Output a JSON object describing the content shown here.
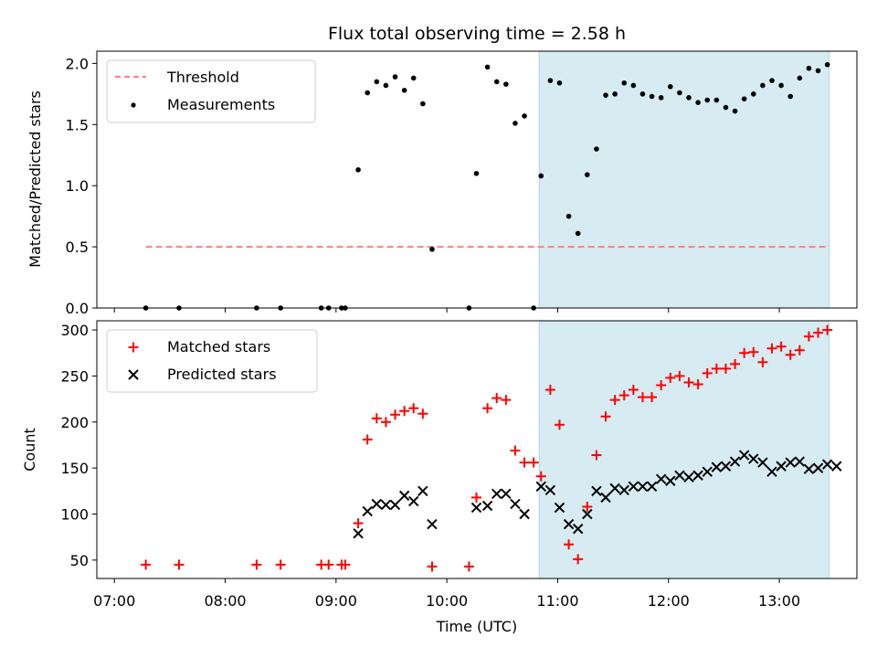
{
  "title": "Flux total observing time = 2.58 h",
  "x_axis": {
    "label": "Time (UTC)",
    "ticks": [
      "07:00",
      "08:00",
      "09:00",
      "10:00",
      "11:00",
      "12:00",
      "13:00"
    ]
  },
  "shaded_interval": {
    "start": "10:50",
    "end": "13:27",
    "color": "#add8e6"
  },
  "colors": {
    "threshold": "#ff8080",
    "measurements": "#000000",
    "matched": "#ff0000",
    "predicted": "#000000",
    "shade": "#add8e6"
  },
  "chart_data": [
    {
      "type": "scatter",
      "ylabel": "Matched/Predicted stars",
      "ylim": [
        0,
        2.1
      ],
      "yticks": [
        "0.0",
        "0.5",
        "1.0",
        "1.5",
        "2.0"
      ],
      "legend": [
        "Threshold",
        "Measurements"
      ],
      "legend_position": "upper-left",
      "threshold": {
        "name": "Threshold",
        "value": 0.5,
        "x_start": "07:17",
        "x_end": "13:27",
        "style": "dashed"
      },
      "series": [
        {
          "name": "Measurements",
          "points": [
            [
              "07:17",
              0.0
            ],
            [
              "07:35",
              0.0
            ],
            [
              "08:17",
              0.0
            ],
            [
              "08:30",
              0.0
            ],
            [
              "08:52",
              0.0
            ],
            [
              "08:56",
              0.0
            ],
            [
              "09:03",
              0.0
            ],
            [
              "09:05",
              0.0
            ],
            [
              "09:12",
              1.13
            ],
            [
              "09:17",
              1.76
            ],
            [
              "09:22",
              1.85
            ],
            [
              "09:27",
              1.82
            ],
            [
              "09:32",
              1.89
            ],
            [
              "09:37",
              1.78
            ],
            [
              "09:42",
              1.88
            ],
            [
              "09:47",
              1.67
            ],
            [
              "09:52",
              0.48
            ],
            [
              "10:12",
              0.0
            ],
            [
              "10:16",
              1.1
            ],
            [
              "10:22",
              1.97
            ],
            [
              "10:27",
              1.85
            ],
            [
              "10:32",
              1.83
            ],
            [
              "10:37",
              1.51
            ],
            [
              "10:42",
              1.57
            ],
            [
              "10:47",
              0.0
            ],
            [
              "10:51",
              1.08
            ],
            [
              "10:56",
              1.86
            ],
            [
              "11:01",
              1.84
            ],
            [
              "11:06",
              0.75
            ],
            [
              "11:11",
              0.61
            ],
            [
              "11:16",
              1.09
            ],
            [
              "11:21",
              1.3
            ],
            [
              "11:26",
              1.74
            ],
            [
              "11:31",
              1.75
            ],
            [
              "11:36",
              1.84
            ],
            [
              "11:41",
              1.82
            ],
            [
              "11:46",
              1.75
            ],
            [
              "11:51",
              1.73
            ],
            [
              "11:56",
              1.72
            ],
            [
              "12:01",
              1.81
            ],
            [
              "12:06",
              1.76
            ],
            [
              "12:11",
              1.72
            ],
            [
              "12:16",
              1.68
            ],
            [
              "12:21",
              1.7
            ],
            [
              "12:26",
              1.7
            ],
            [
              "12:31",
              1.64
            ],
            [
              "12:36",
              1.61
            ],
            [
              "12:41",
              1.71
            ],
            [
              "12:46",
              1.75
            ],
            [
              "12:51",
              1.82
            ],
            [
              "12:56",
              1.86
            ],
            [
              "13:01",
              1.82
            ],
            [
              "13:06",
              1.73
            ],
            [
              "13:11",
              1.88
            ],
            [
              "13:16",
              1.96
            ],
            [
              "13:21",
              1.94
            ],
            [
              "13:26",
              1.99
            ]
          ]
        }
      ]
    },
    {
      "type": "scatter",
      "ylabel": "Count",
      "ylim": [
        30,
        310
      ],
      "yticks": [
        "50",
        "100",
        "150",
        "200",
        "250",
        "300"
      ],
      "legend": [
        "Matched stars",
        "Predicted stars"
      ],
      "legend_position": "upper-left",
      "series": [
        {
          "name": "Matched stars",
          "marker": "+",
          "points": [
            [
              "07:17",
              45
            ],
            [
              "07:35",
              45
            ],
            [
              "08:17",
              45
            ],
            [
              "08:30",
              45
            ],
            [
              "08:52",
              45
            ],
            [
              "08:56",
              45
            ],
            [
              "09:03",
              45
            ],
            [
              "09:05",
              45
            ],
            [
              "09:12",
              90
            ],
            [
              "09:17",
              181
            ],
            [
              "09:22",
              204
            ],
            [
              "09:27",
              200
            ],
            [
              "09:32",
              208
            ],
            [
              "09:37",
              212
            ],
            [
              "09:42",
              215
            ],
            [
              "09:47",
              209
            ],
            [
              "09:52",
              43
            ],
            [
              "10:12",
              43
            ],
            [
              "10:16",
              118
            ],
            [
              "10:22",
              215
            ],
            [
              "10:27",
              226
            ],
            [
              "10:32",
              224
            ],
            [
              "10:37",
              169
            ],
            [
              "10:42",
              156
            ],
            [
              "10:47",
              156
            ],
            [
              "10:51",
              141
            ],
            [
              "10:56",
              235
            ],
            [
              "11:01",
              197
            ],
            [
              "11:06",
              67
            ],
            [
              "11:11",
              51
            ],
            [
              "11:16",
              108
            ],
            [
              "11:21",
              164
            ],
            [
              "11:26",
              206
            ],
            [
              "11:31",
              224
            ],
            [
              "11:36",
              229
            ],
            [
              "11:41",
              235
            ],
            [
              "11:46",
              227
            ],
            [
              "11:51",
              227
            ],
            [
              "11:56",
              240
            ],
            [
              "12:01",
              248
            ],
            [
              "12:06",
              250
            ],
            [
              "12:11",
              243
            ],
            [
              "12:16",
              241
            ],
            [
              "12:21",
              253
            ],
            [
              "12:26",
              258
            ],
            [
              "12:31",
              258
            ],
            [
              "12:36",
              263
            ],
            [
              "12:41",
              275
            ],
            [
              "12:46",
              276
            ],
            [
              "12:51",
              265
            ],
            [
              "12:56",
              280
            ],
            [
              "13:01",
              282
            ],
            [
              "13:06",
              273
            ],
            [
              "13:11",
              278
            ],
            [
              "13:16",
              293
            ],
            [
              "13:21",
              297
            ],
            [
              "13:26",
              300
            ]
          ]
        },
        {
          "name": "Predicted stars",
          "marker": "x",
          "points": [
            [
              "09:12",
              79
            ],
            [
              "09:17",
              103
            ],
            [
              "09:22",
              111
            ],
            [
              "09:27",
              110
            ],
            [
              "09:32",
              110
            ],
            [
              "09:37",
              120
            ],
            [
              "09:42",
              114
            ],
            [
              "09:47",
              125
            ],
            [
              "09:52",
              89
            ],
            [
              "10:16",
              107
            ],
            [
              "10:22",
              109
            ],
            [
              "10:27",
              122
            ],
            [
              "10:32",
              122
            ],
            [
              "10:37",
              111
            ],
            [
              "10:42",
              100
            ],
            [
              "10:51",
              130
            ],
            [
              "10:56",
              126
            ],
            [
              "11:01",
              107
            ],
            [
              "11:06",
              89
            ],
            [
              "11:11",
              84
            ],
            [
              "11:16",
              100
            ],
            [
              "11:21",
              125
            ],
            [
              "11:26",
              118
            ],
            [
              "11:31",
              128
            ],
            [
              "11:36",
              126
            ],
            [
              "11:41",
              130
            ],
            [
              "11:46",
              130
            ],
            [
              "11:51",
              130
            ],
            [
              "11:56",
              138
            ],
            [
              "12:01",
              136
            ],
            [
              "12:06",
              142
            ],
            [
              "12:11",
              140
            ],
            [
              "12:16",
              142
            ],
            [
              "12:21",
              146
            ],
            [
              "12:26",
              151
            ],
            [
              "12:31",
              152
            ],
            [
              "12:36",
              157
            ],
            [
              "12:41",
              164
            ],
            [
              "12:46",
              160
            ],
            [
              "12:51",
              156
            ],
            [
              "12:56",
              146
            ],
            [
              "13:01",
              152
            ],
            [
              "13:06",
              156
            ],
            [
              "13:11",
              157
            ],
            [
              "13:16",
              149
            ],
            [
              "13:21",
              150
            ],
            [
              "13:26",
              154
            ],
            [
              "13:31",
              152
            ]
          ]
        }
      ]
    }
  ]
}
